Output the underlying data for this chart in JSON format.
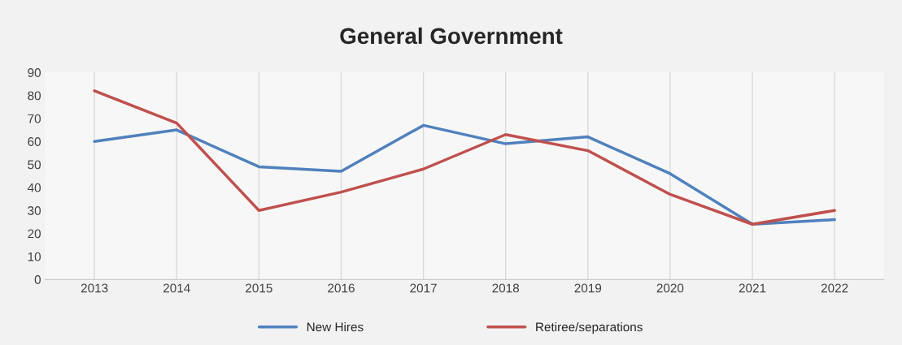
{
  "chart_data": {
    "type": "line",
    "title": "General Government",
    "categories": [
      "2013",
      "2014",
      "2015",
      "2016",
      "2017",
      "2018",
      "2019",
      "2020",
      "2021",
      "2022"
    ],
    "series": [
      {
        "name": "New Hires",
        "color": "#4f81bd",
        "values": [
          60,
          65,
          49,
          47,
          67,
          59,
          62,
          46,
          24,
          26
        ]
      },
      {
        "name": "Retiree/separations",
        "color": "#c0504d",
        "values": [
          82,
          68,
          30,
          38,
          48,
          63,
          56,
          37,
          24,
          30
        ]
      }
    ],
    "ylim": [
      0,
      90
    ],
    "yticks": [
      0,
      10,
      20,
      30,
      40,
      50,
      60,
      70,
      80,
      90
    ],
    "grid": "x",
    "legend": "bottom",
    "marker": "none",
    "line_style": "solid"
  }
}
